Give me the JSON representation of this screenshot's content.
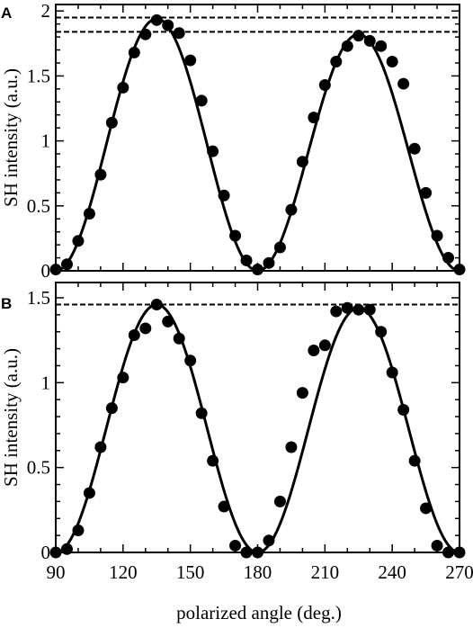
{
  "chart_data": [
    {
      "panel": "A",
      "type": "scatter",
      "xlabel": "",
      "ylabel": "SH intensity (a.u.)",
      "xlim": [
        90,
        270
      ],
      "ylim": [
        0,
        2.0
      ],
      "x_ticks": [
        90,
        120,
        150,
        180,
        210,
        240,
        270
      ],
      "y_ticks": [
        0,
        0.5,
        1,
        1.5,
        2
      ],
      "y_tick_labels": [
        "0",
        "0.5",
        "1",
        "1.5",
        "2"
      ],
      "grid": false,
      "reference_lines": [
        1.95,
        1.84
      ],
      "fit": {
        "max1": 1.94,
        "max2": 1.82,
        "peak1": 135,
        "peak2": 225
      },
      "series": [
        {
          "style": "filled-circles",
          "x": [
            90,
            95,
            100,
            105,
            110,
            115,
            120,
            125,
            130,
            135,
            140,
            145,
            150,
            155,
            160,
            165,
            170,
            175,
            180,
            185,
            190,
            195,
            200,
            205,
            210,
            215,
            220,
            225,
            230,
            235,
            240,
            245,
            250,
            255,
            260,
            265,
            270
          ],
          "y": [
            0.01,
            0.05,
            0.23,
            0.44,
            0.74,
            1.14,
            1.41,
            1.68,
            1.82,
            1.93,
            1.89,
            1.83,
            1.62,
            1.31,
            0.92,
            0.58,
            0.27,
            0.08,
            0.01,
            0.06,
            0.18,
            0.47,
            0.84,
            1.18,
            1.43,
            1.61,
            1.73,
            1.81,
            1.77,
            1.73,
            1.61,
            1.44,
            0.94,
            0.6,
            0.27,
            0.1,
            0.01
          ]
        }
      ]
    },
    {
      "panel": "B",
      "type": "scatter",
      "xlabel": "polarized angle (deg.)",
      "ylabel": "SH intensity (a.u.)",
      "xlim": [
        90,
        270
      ],
      "ylim": [
        0,
        1.5
      ],
      "x_ticks": [
        90,
        120,
        150,
        180,
        210,
        240,
        270
      ],
      "y_ticks": [
        0,
        0.5,
        1,
        1.5
      ],
      "y_tick_labels": [
        "0",
        "0.5",
        "1",
        "1.5"
      ],
      "grid": false,
      "reference_lines": [
        1.46
      ],
      "fit": {
        "max1": 1.46,
        "max2": 1.44,
        "peak1": 135,
        "peak2": 225
      },
      "series": [
        {
          "style": "filled-circles",
          "x": [
            90,
            95,
            100,
            105,
            110,
            115,
            120,
            125,
            130,
            135,
            140,
            145,
            150,
            155,
            160,
            165,
            170,
            175,
            180,
            185,
            190,
            195,
            200,
            205,
            210,
            215,
            220,
            225,
            230,
            235,
            240,
            245,
            250,
            255,
            260,
            265,
            270
          ],
          "y": [
            0.0,
            0.02,
            0.13,
            0.35,
            0.62,
            0.85,
            1.03,
            1.28,
            1.32,
            1.46,
            1.36,
            1.26,
            1.13,
            0.82,
            0.54,
            0.27,
            0.04,
            0.0,
            0.0,
            0.07,
            0.3,
            0.62,
            0.94,
            1.19,
            1.22,
            1.42,
            1.44,
            1.43,
            1.43,
            1.3,
            1.06,
            0.84,
            0.54,
            0.26,
            0.04,
            0.0,
            0.0
          ]
        }
      ]
    }
  ],
  "panel_labels": [
    "A",
    "B"
  ]
}
